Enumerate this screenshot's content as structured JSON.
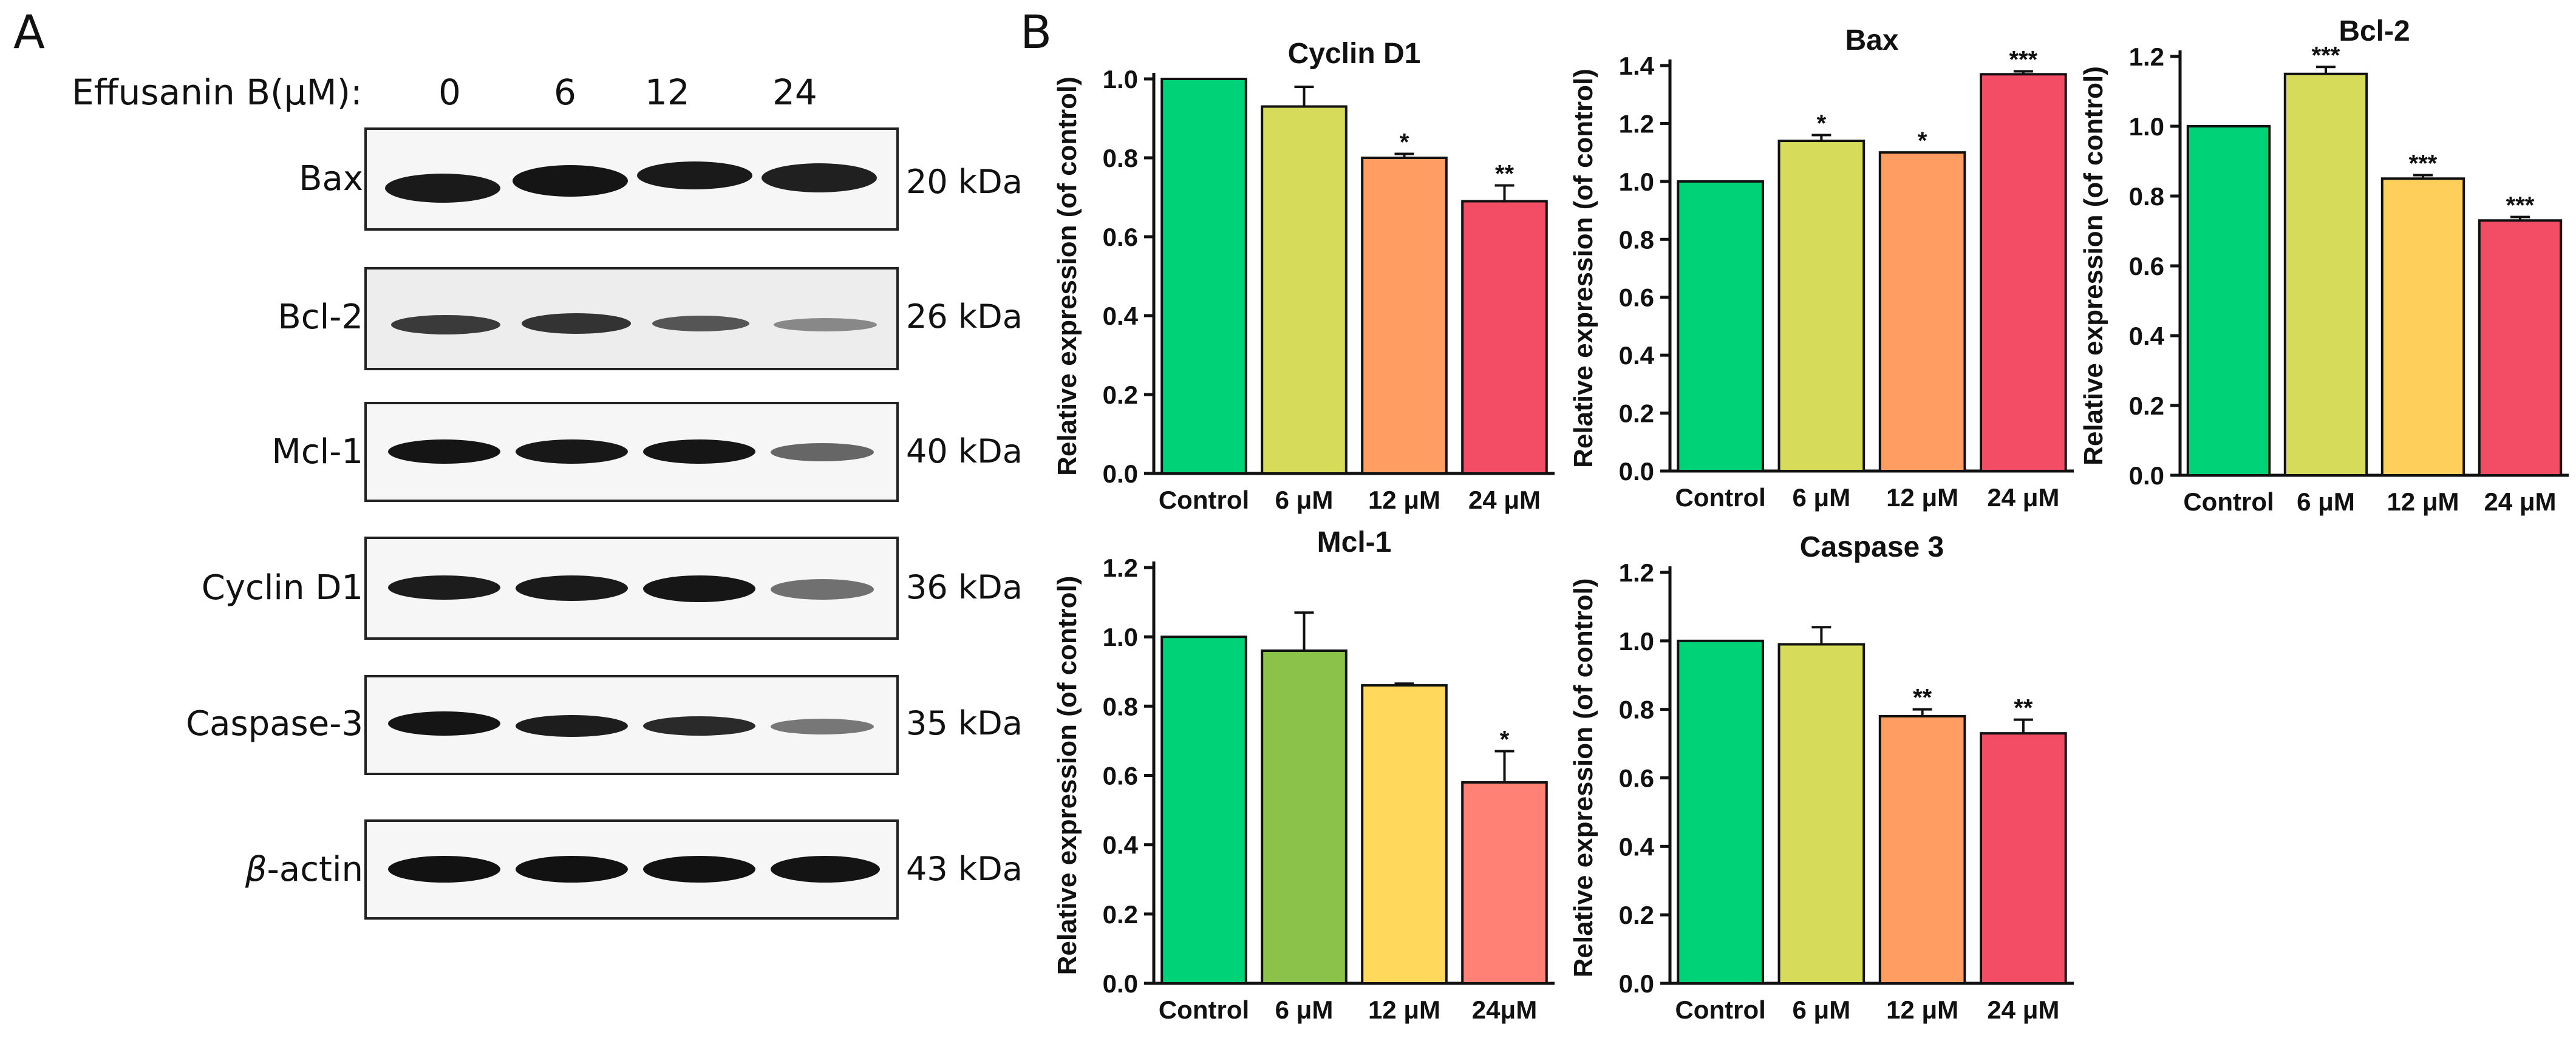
{
  "panels": {
    "a": "A",
    "b": "B"
  },
  "western_blot": {
    "treatment_label": "Effusanin B(μM):",
    "concentrations": [
      "0",
      "6",
      "12",
      "24"
    ],
    "blots": [
      {
        "label": "Bax",
        "kda": "20 kDa"
      },
      {
        "label": "Bcl-2",
        "kda": "26 kDa"
      },
      {
        "label": "Mcl-1",
        "kda": "40 kDa"
      },
      {
        "label": "Cyclin D1",
        "kda": "36 kDa"
      },
      {
        "label": "Caspase-3",
        "kda": "35 kDa"
      },
      {
        "label_greek": "β",
        "label_rest": "-actin",
        "kda": "43 kDa"
      }
    ]
  },
  "chart_data": [
    {
      "type": "bar",
      "title": "Cyclin D1",
      "ylabel": "Relative expression (of control)",
      "categories": [
        "Control",
        "6 μM",
        "12 μM",
        "24 μM"
      ],
      "values": [
        1.0,
        0.93,
        0.8,
        0.69
      ],
      "errors": [
        0,
        0.05,
        0.01,
        0.04
      ],
      "significance": [
        "",
        "",
        "*",
        "**"
      ],
      "ylim": [
        0,
        1.0
      ],
      "yticks": [
        "0.0",
        "0.2",
        "0.4",
        "0.6",
        "0.8",
        "1.0"
      ],
      "colors": [
        "#00d277",
        "#d6db5a",
        "#ff9d62",
        "#f24d65"
      ]
    },
    {
      "type": "bar",
      "title": "Bax",
      "ylabel": "Relative expression (of control)",
      "categories": [
        "Control",
        "6 μM",
        "12 μM",
        "24 μM"
      ],
      "values": [
        1.0,
        1.14,
        1.1,
        1.37
      ],
      "errors": [
        0,
        0.02,
        0,
        0.01
      ],
      "significance": [
        "",
        "*",
        "*",
        "***"
      ],
      "ylim": [
        0,
        1.4
      ],
      "yticks": [
        "0.0",
        "0.2",
        "0.4",
        "0.6",
        "0.8",
        "1.0",
        "1.2",
        "1.4"
      ],
      "colors": [
        "#00d277",
        "#d6db5a",
        "#ff9d62",
        "#f24d65"
      ]
    },
    {
      "type": "bar",
      "title": "Bcl-2",
      "ylabel": "Relative expression (of control)",
      "categories": [
        "Control",
        "6 μM",
        "12 μM",
        "24 μM"
      ],
      "values": [
        1.0,
        1.15,
        0.85,
        0.73
      ],
      "errors": [
        0,
        0.02,
        0.01,
        0.01
      ],
      "significance": [
        "",
        "***",
        "***",
        "***"
      ],
      "ylim": [
        0,
        1.2
      ],
      "yticks": [
        "0.0",
        "0.2",
        "0.4",
        "0.6",
        "0.8",
        "1.0",
        "1.2"
      ],
      "colors": [
        "#00d277",
        "#d6db5a",
        "#ffcf5c",
        "#f24d65"
      ]
    },
    {
      "type": "bar",
      "title": "Mcl-1",
      "ylabel": "Relative expression (of control)",
      "categories": [
        "Control",
        "6 μM",
        "12 μM",
        "24μM"
      ],
      "values": [
        1.0,
        0.96,
        0.86,
        0.58
      ],
      "errors": [
        0,
        0.11,
        0.005,
        0.09
      ],
      "significance": [
        "",
        "",
        "",
        "*"
      ],
      "ylim": [
        0,
        1.2
      ],
      "yticks": [
        "0.0",
        "0.2",
        "0.4",
        "0.6",
        "0.8",
        "1.0",
        "1.2"
      ],
      "colors": [
        "#00d277",
        "#8bc34a",
        "#ffd85c",
        "#ff8075"
      ]
    },
    {
      "type": "bar",
      "title": "Caspase 3",
      "ylabel": "Relative expression (of control)",
      "categories": [
        "Control",
        "6 μM",
        "12 μM",
        "24 μM"
      ],
      "values": [
        1.0,
        0.99,
        0.78,
        0.73
      ],
      "errors": [
        0,
        0.05,
        0.02,
        0.04
      ],
      "significance": [
        "",
        "",
        "**",
        "**"
      ],
      "ylim": [
        0,
        1.2
      ],
      "yticks": [
        "0.0",
        "0.2",
        "0.4",
        "0.6",
        "0.8",
        "1.0",
        "1.2"
      ],
      "colors": [
        "#00d277",
        "#d6db5a",
        "#ff9d62",
        "#f24d65"
      ]
    }
  ]
}
